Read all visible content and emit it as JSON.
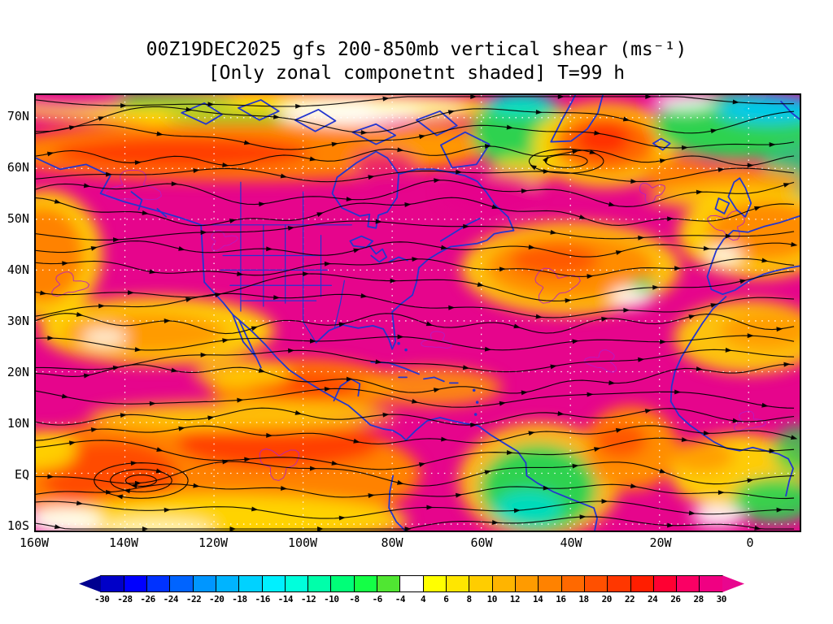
{
  "chart_data": {
    "type": "heatmap",
    "title": "00Z19DEC2025 gfs 200-850mb vertical shear (ms⁻¹)",
    "subtitle": "[Only zonal componetnt shaded] T=99 h",
    "x_ticks": [
      "160W",
      "140W",
      "120W",
      "100W",
      "80W",
      "60W",
      "40W",
      "20W",
      "0"
    ],
    "y_ticks": [
      "70N",
      "60N",
      "50N",
      "40N",
      "30N",
      "20N",
      "10N",
      "EQ",
      "10S"
    ],
    "grid": "dotted",
    "colorbar": {
      "position": "bottom",
      "labels": [
        "-30",
        "-28",
        "-26",
        "-24",
        "-22",
        "-20",
        "-18",
        "-16",
        "-14",
        "-12",
        "-10",
        "-8",
        "-6",
        "-4",
        "4",
        "6",
        "8",
        "10",
        "12",
        "14",
        "16",
        "18",
        "20",
        "22",
        "24",
        "26",
        "28",
        "30"
      ],
      "colors": [
        "#00008F",
        "#0000C8",
        "#0000FF",
        "#0032FF",
        "#0064FF",
        "#0096FF",
        "#00B4FF",
        "#00D2FF",
        "#00F0FF",
        "#00FFDC",
        "#00FFAA",
        "#00FF78",
        "#14FF46",
        "#50E632",
        "#FFFFFF",
        "#FFFF00",
        "#FFE600",
        "#FFCD00",
        "#FFB400",
        "#FF9B00",
        "#FF8200",
        "#FF6900",
        "#FF5000",
        "#FF3700",
        "#FF1E00",
        "#FF0032",
        "#FA0064",
        "#F00082",
        "#E8068E"
      ]
    },
    "overlay_colors": {
      "streamlines": "#000000",
      "coastlines": "#2336CF",
      "thin_contours": "#B21FC8",
      "gridlines": "#FFFFFF",
      "shading_dominant": "#E6058C"
    }
  }
}
